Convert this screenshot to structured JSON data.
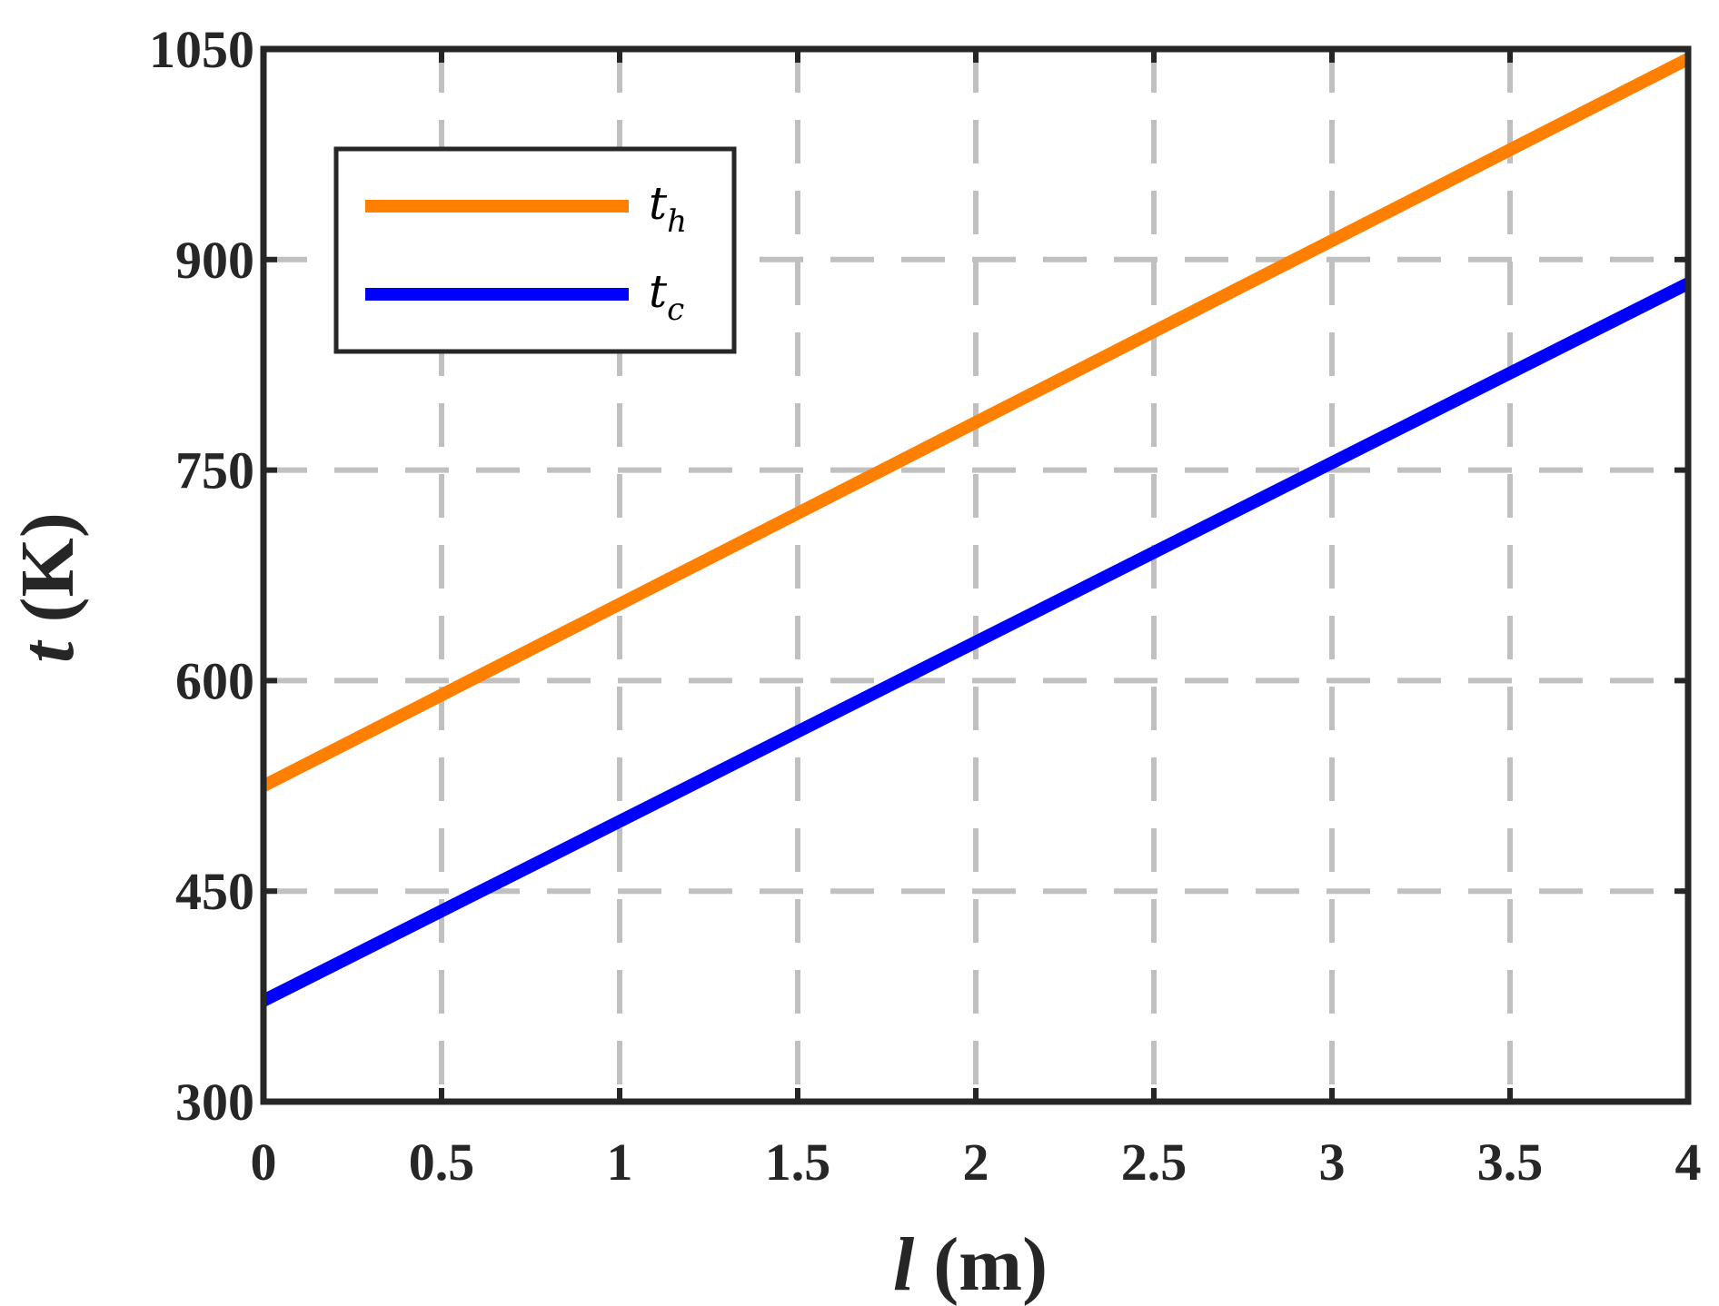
{
  "chart_data": {
    "type": "line",
    "title": "",
    "xlabel": {
      "var": "l",
      "unit": " (m)"
    },
    "ylabel": {
      "var": "t",
      "unit": " (K)"
    },
    "xlim": [
      0,
      4
    ],
    "ylim": [
      300,
      1050
    ],
    "xticks": [
      "0",
      "0.5",
      "1",
      "1.5",
      "2",
      "2.5",
      "3",
      "3.5",
      "4"
    ],
    "yticks": [
      "300",
      "450",
      "600",
      "750",
      "900",
      "1050"
    ],
    "grid": true,
    "legend_position": "top-left",
    "series": [
      {
        "name": "t",
        "subscript": "h",
        "color": "#FF8000",
        "x": [
          0,
          4
        ],
        "y": [
          525,
          1043
        ]
      },
      {
        "name": "t",
        "subscript": "c",
        "color": "#0000FF",
        "x": [
          0,
          4
        ],
        "y": [
          372,
          883
        ]
      }
    ]
  }
}
